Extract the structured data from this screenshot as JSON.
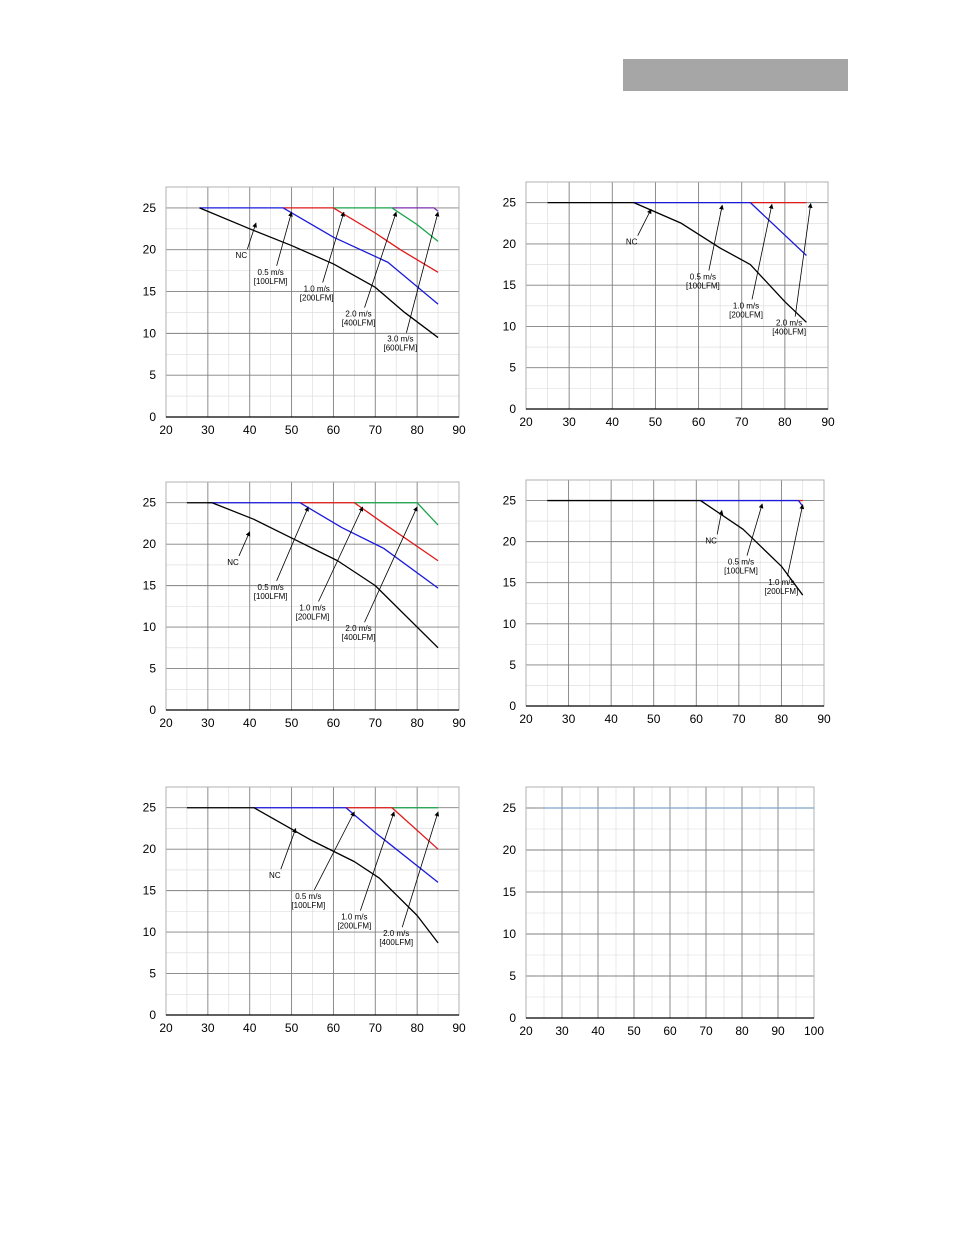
{
  "page": {
    "header_bar_color": "#a6a6a6"
  },
  "colors": {
    "NC": "#000000",
    "0.5 m/s": "#1a1adb",
    "1.0 m/s": "#e01919",
    "2.0 m/s": "#1aa34a",
    "3.0 m/s": "#7b2fb0",
    "plain": "#7ba3c9",
    "grid_major": "#808080",
    "grid_minor": "#d9d9d9",
    "frame": "#b0b0b0"
  },
  "chart_data": [
    {
      "type": "line",
      "xlim": [
        20,
        90
      ],
      "ylim": [
        0,
        27.5
      ],
      "xticks": [
        "20",
        "30",
        "40",
        "50",
        "60",
        "70",
        "80",
        "90"
      ],
      "yticks": [
        "0",
        "5",
        "10",
        "15",
        "20",
        "25"
      ],
      "series": [
        {
          "name": "3.0 m/s",
          "color_key": "3.0 m/s",
          "points": [
            [
              74,
              25
            ],
            [
              84,
              25
            ],
            [
              85,
              24.6
            ]
          ]
        },
        {
          "name": "2.0 m/s",
          "color_key": "2.0 m/s",
          "points": [
            [
              60,
              25
            ],
            [
              74,
              25
            ],
            [
              80,
              23
            ],
            [
              85,
              21
            ]
          ]
        },
        {
          "name": "1.0 m/s",
          "color_key": "1.0 m/s",
          "points": [
            [
              48,
              25
            ],
            [
              60,
              25
            ],
            [
              70,
              22
            ],
            [
              76,
              20
            ],
            [
              85,
              17.3
            ]
          ]
        },
        {
          "name": "0.5 m/s",
          "color_key": "0.5 m/s",
          "points": [
            [
              28,
              25
            ],
            [
              48,
              25
            ],
            [
              60,
              21.5
            ],
            [
              73,
              18.5
            ],
            [
              85,
              13.5
            ]
          ]
        },
        {
          "name": "NC",
          "color_key": "NC",
          "points": [
            [
              28,
              25
            ],
            [
              40,
              22.5
            ],
            [
              50,
              20.5
            ],
            [
              60,
              18.3
            ],
            [
              70,
              15.5
            ],
            [
              77,
              12.5
            ],
            [
              85,
              9.5
            ]
          ]
        }
      ],
      "annotations": [
        {
          "lines": [
            "NC"
          ],
          "text_at": [
            38,
            19
          ],
          "arrow_to": [
            41.5,
            23.2
          ]
        },
        {
          "lines": [
            "0.5 m/s",
            "[100LFM]"
          ],
          "text_at": [
            45,
            17
          ],
          "arrow_to": [
            50,
            24.5
          ]
        },
        {
          "lines": [
            "1.0 m/s",
            "[200LFM]"
          ],
          "text_at": [
            56,
            15
          ],
          "arrow_to": [
            62.5,
            24.5
          ]
        },
        {
          "lines": [
            "2.0 m/s",
            "[400LFM]"
          ],
          "text_at": [
            66,
            12
          ],
          "arrow_to": [
            75,
            24.5
          ]
        },
        {
          "lines": [
            "3.0 m/s",
            "[600LFM]"
          ],
          "text_at": [
            76,
            9
          ],
          "arrow_to": [
            85,
            24.5
          ]
        }
      ]
    },
    {
      "type": "line",
      "xlim": [
        20,
        90
      ],
      "ylim": [
        0,
        27.5
      ],
      "xticks": [
        "20",
        "30",
        "40",
        "50",
        "60",
        "70",
        "80",
        "90"
      ],
      "yticks": [
        "0",
        "5",
        "10",
        "15",
        "20",
        "25"
      ],
      "series": [
        {
          "name": "1.0 m/s",
          "color_key": "1.0 m/s",
          "points": [
            [
              72,
              25
            ],
            [
              85,
              25
            ]
          ]
        },
        {
          "name": "0.5 m/s",
          "color_key": "0.5 m/s",
          "points": [
            [
              45,
              25
            ],
            [
              72,
              25
            ],
            [
              85,
              18.6
            ]
          ]
        },
        {
          "name": "NC",
          "color_key": "NC",
          "points": [
            [
              25,
              25
            ],
            [
              45,
              25
            ],
            [
              56,
              22.5
            ],
            [
              65,
              19.5
            ],
            [
              72,
              17.5
            ],
            [
              80,
              13
            ],
            [
              85,
              10.5
            ]
          ]
        }
      ],
      "annotations": [
        {
          "lines": [
            "NC"
          ],
          "text_at": [
            44.5,
            19.9
          ],
          "arrow_to": [
            49,
            24.2
          ]
        },
        {
          "lines": [
            "0.5 m/s",
            "[100LFM]"
          ],
          "text_at": [
            61,
            15.7
          ],
          "arrow_to": [
            65.5,
            24.7
          ]
        },
        {
          "lines": [
            "1.0 m/s",
            "[200LFM]"
          ],
          "text_at": [
            71,
            12.2
          ],
          "arrow_to": [
            77,
            24.8
          ]
        },
        {
          "lines": [
            "2.0 m/s",
            "[400LFM]"
          ],
          "text_at": [
            81,
            10.1
          ],
          "arrow_to": [
            86,
            24.9
          ]
        }
      ]
    },
    {
      "type": "line",
      "xlim": [
        20,
        90
      ],
      "ylim": [
        0,
        27.5
      ],
      "xticks": [
        "20",
        "30",
        "40",
        "50",
        "60",
        "70",
        "80",
        "90"
      ],
      "yticks": [
        "0",
        "5",
        "10",
        "15",
        "20",
        "25"
      ],
      "series": [
        {
          "name": "2.0 m/s",
          "color_key": "2.0 m/s",
          "points": [
            [
              65,
              25
            ],
            [
              80,
              25
            ],
            [
              85,
              22.3
            ]
          ]
        },
        {
          "name": "1.0 m/s",
          "color_key": "1.0 m/s",
          "points": [
            [
              52,
              25
            ],
            [
              65,
              25
            ],
            [
              72,
              22.5
            ],
            [
              85,
              18
            ]
          ]
        },
        {
          "name": "0.5 m/s",
          "color_key": "0.5 m/s",
          "points": [
            [
              30,
              25
            ],
            [
              52,
              25
            ],
            [
              62,
              22
            ],
            [
              72,
              19.5
            ],
            [
              85,
              14.7
            ]
          ]
        },
        {
          "name": "NC",
          "color_key": "NC",
          "points": [
            [
              25,
              25
            ],
            [
              31,
              25
            ],
            [
              41,
              23
            ],
            [
              51,
              20.5
            ],
            [
              61,
              18
            ],
            [
              70,
              15
            ],
            [
              85,
              7.5
            ]
          ]
        }
      ],
      "annotations": [
        {
          "lines": [
            "NC"
          ],
          "text_at": [
            36,
            17.5
          ],
          "arrow_to": [
            40,
            21.5
          ]
        },
        {
          "lines": [
            "0.5 m/s",
            "[100LFM]"
          ],
          "text_at": [
            45,
            14.5
          ],
          "arrow_to": [
            54,
            24.5
          ]
        },
        {
          "lines": [
            "1.0 m/s",
            "[200LFM]"
          ],
          "text_at": [
            55,
            12
          ],
          "arrow_to": [
            67,
            24.5
          ]
        },
        {
          "lines": [
            "2.0 m/s",
            "[400LFM]"
          ],
          "text_at": [
            66,
            9.5
          ],
          "arrow_to": [
            80,
            24.5
          ]
        }
      ]
    },
    {
      "type": "line",
      "xlim": [
        20,
        90
      ],
      "ylim": [
        0,
        27.5
      ],
      "xticks": [
        "20",
        "30",
        "40",
        "50",
        "60",
        "70",
        "80",
        "90"
      ],
      "yticks": [
        "0",
        "5",
        "10",
        "15",
        "20",
        "25"
      ],
      "series": [
        {
          "name": "1.0 m/s",
          "color_key": "1.0 m/s",
          "points": [
            [
              84,
              25
            ],
            [
              85,
              25
            ]
          ]
        },
        {
          "name": "0.5 m/s",
          "color_key": "0.5 m/s",
          "points": [
            [
              61,
              25
            ],
            [
              84,
              25
            ],
            [
              85,
              24.3
            ]
          ]
        },
        {
          "name": "NC",
          "color_key": "NC",
          "points": [
            [
              25,
              25
            ],
            [
              61,
              25
            ],
            [
              71,
              21.5
            ],
            [
              80,
              17
            ],
            [
              85,
              13.5
            ]
          ]
        }
      ],
      "annotations": [
        {
          "lines": [
            "NC"
          ],
          "text_at": [
            63.5,
            19.8
          ],
          "arrow_to": [
            66,
            23.8
          ]
        },
        {
          "lines": [
            "0.5 m/s",
            "[100LFM]"
          ],
          "text_at": [
            70.5,
            17.2
          ],
          "arrow_to": [
            75.5,
            24.6
          ]
        },
        {
          "lines": [
            "1.0 m/s",
            "[200LFM]"
          ],
          "text_at": [
            80,
            14.7
          ],
          "arrow_to": [
            85,
            24.5
          ]
        }
      ]
    },
    {
      "type": "line",
      "xlim": [
        20,
        90
      ],
      "ylim": [
        0,
        27.5
      ],
      "xticks": [
        "20",
        "30",
        "40",
        "50",
        "60",
        "70",
        "80",
        "90"
      ],
      "yticks": [
        "0",
        "5",
        "10",
        "15",
        "20",
        "25"
      ],
      "series": [
        {
          "name": "2.0 m/s",
          "color_key": "2.0 m/s",
          "points": [
            [
              74,
              25
            ],
            [
              85,
              25
            ]
          ]
        },
        {
          "name": "1.0 m/s",
          "color_key": "1.0 m/s",
          "points": [
            [
              63,
              25
            ],
            [
              74,
              25
            ],
            [
              85,
              20
            ]
          ]
        },
        {
          "name": "0.5 m/s",
          "color_key": "0.5 m/s",
          "points": [
            [
              41,
              25
            ],
            [
              63,
              25
            ],
            [
              70,
              22
            ],
            [
              85,
              16
            ]
          ]
        },
        {
          "name": "NC",
          "color_key": "NC",
          "points": [
            [
              25,
              25
            ],
            [
              41,
              25
            ],
            [
              48,
              23
            ],
            [
              55,
              21
            ],
            [
              65,
              18.5
            ],
            [
              71,
              16.5
            ],
            [
              80,
              12
            ],
            [
              85,
              8.7
            ]
          ]
        }
      ],
      "annotations": [
        {
          "lines": [
            "NC"
          ],
          "text_at": [
            46,
            16.5
          ],
          "arrow_to": [
            51,
            22.5
          ]
        },
        {
          "lines": [
            "0.5 m/s",
            "[100LFM]"
          ],
          "text_at": [
            54,
            14
          ],
          "arrow_to": [
            65,
            24.5
          ]
        },
        {
          "lines": [
            "1.0 m/s",
            "[200LFM]"
          ],
          "text_at": [
            65,
            11.5
          ],
          "arrow_to": [
            74.5,
            24.5
          ]
        },
        {
          "lines": [
            "2.0 m/s",
            "[400LFM]"
          ],
          "text_at": [
            75,
            9.5
          ],
          "arrow_to": [
            85,
            24.5
          ]
        }
      ]
    },
    {
      "type": "line",
      "xlim": [
        20,
        100
      ],
      "ylim": [
        0,
        27.5
      ],
      "xticks": [
        "20",
        "30",
        "40",
        "50",
        "60",
        "70",
        "80",
        "90",
        "100"
      ],
      "yticks": [
        "0",
        "5",
        "10",
        "15",
        "20",
        "25"
      ],
      "series": [
        {
          "name": "",
          "color_key": "plain",
          "points": [
            [
              25,
              25
            ],
            [
              100,
              25
            ]
          ]
        }
      ],
      "annotations": []
    }
  ]
}
